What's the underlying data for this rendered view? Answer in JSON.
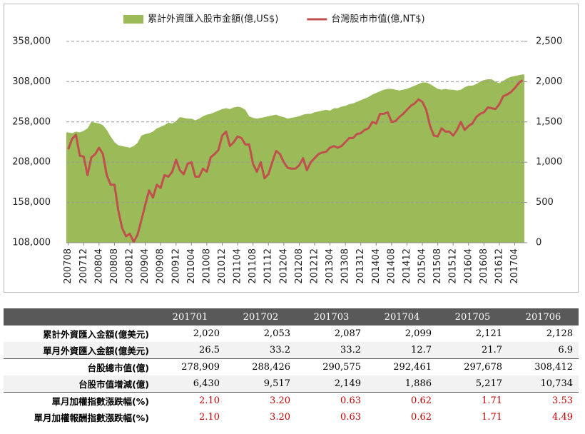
{
  "chart_data": {
    "type": "area-line",
    "categories": [
      "200708",
      null,
      null,
      null,
      "200712",
      null,
      null,
      null,
      "200804",
      null,
      null,
      null,
      "200808",
      null,
      null,
      null,
      "200812",
      null,
      null,
      null,
      "200904",
      null,
      null,
      null,
      "200908",
      null,
      null,
      null,
      "200912",
      null,
      null,
      null,
      "201004",
      null,
      null,
      null,
      "201008",
      null,
      null,
      null,
      "201012",
      null,
      null,
      null,
      "201104",
      null,
      null,
      null,
      "201108",
      null,
      null,
      null,
      "201112",
      null,
      null,
      null,
      "201204",
      null,
      null,
      null,
      "201208",
      null,
      null,
      null,
      "201212",
      null,
      null,
      null,
      "201304",
      null,
      null,
      null,
      "201308",
      null,
      null,
      null,
      "201312",
      null,
      null,
      null,
      "201404",
      null,
      null,
      null,
      "201408",
      null,
      null,
      null,
      "201412",
      null,
      null,
      null,
      "201504",
      null,
      null,
      null,
      "201508",
      null,
      null,
      null,
      "201512",
      null,
      null,
      null,
      "201604",
      null,
      null,
      null,
      "201608",
      null,
      null,
      null,
      "201612",
      null,
      null,
      null,
      "201704",
      null,
      null
    ],
    "series": [
      {
        "name": "累計外資匯入股市金額(億,US$)",
        "color": "#9bbb59",
        "kind": "area",
        "values": [
          245000,
          244000,
          246000,
          245000,
          247000,
          250000,
          258000,
          257000,
          256000,
          254000,
          248000,
          240000,
          233000,
          229000,
          228000,
          227000,
          226000,
          228000,
          232000,
          241000,
          243000,
          244000,
          246000,
          250000,
          252000,
          254000,
          257000,
          256000,
          259000,
          264000,
          263000,
          262000,
          262000,
          260000,
          262000,
          265000,
          267000,
          268000,
          270000,
          272000,
          274000,
          275000,
          274000,
          276000,
          277000,
          276000,
          273000,
          265000,
          263000,
          262000,
          263000,
          264000,
          265000,
          266000,
          267000,
          265000,
          264000,
          262000,
          263000,
          264000,
          265000,
          267000,
          268000,
          268000,
          270000,
          271000,
          272000,
          273000,
          272000,
          275000,
          275000,
          277000,
          278000,
          280000,
          281000,
          283000,
          285000,
          287000,
          289000,
          292000,
          294000,
          296000,
          298000,
          299000,
          299000,
          298000,
          297000,
          298000,
          299000,
          301000,
          303000,
          305000,
          307000,
          307000,
          305000,
          302000,
          299000,
          298000,
          299000,
          298000,
          298000,
          297000,
          298000,
          301000,
          303000,
          303000,
          305000,
          308000,
          310000,
          311000,
          311000,
          308000,
          306000,
          309000,
          312000,
          314000,
          315000,
          316000,
          317000
        ]
      },
      {
        "name": "台灣股市市值(億,NT$)",
        "color": "#c0504d",
        "kind": "line",
        "axis": "y2",
        "values": [
          1160,
          1290,
          1340,
          1080,
          1070,
          840,
          1060,
          1100,
          1180,
          1100,
          840,
          720,
          720,
          400,
          180,
          80,
          110,
          10,
          100,
          280,
          470,
          650,
          560,
          720,
          680,
          840,
          820,
          880,
          1030,
          900,
          850,
          980,
          1000,
          820,
          820,
          920,
          880,
          1060,
          1100,
          1150,
          1330,
          1380,
          1200,
          1250,
          1320,
          1300,
          1220,
          1220,
          980,
          880,
          1000,
          800,
          850,
          1000,
          1140,
          1100,
          1000,
          930,
          920,
          920,
          960,
          1050,
          900,
          1000,
          1050,
          1100,
          1120,
          1130,
          1180,
          1200,
          1180,
          1200,
          1250,
          1300,
          1300,
          1350,
          1360,
          1400,
          1420,
          1500,
          1480,
          1600,
          1600,
          1620,
          1500,
          1510,
          1560,
          1600,
          1650,
          1700,
          1730,
          1780,
          1750,
          1650,
          1450,
          1330,
          1320,
          1420,
          1380,
          1380,
          1330,
          1400,
          1500,
          1400,
          1450,
          1480,
          1560,
          1600,
          1620,
          1680,
          1670,
          1660,
          1720,
          1820,
          1840,
          1870,
          1920,
          1980,
          2020
        ]
      }
    ],
    "ylim": [
      108000,
      358000
    ],
    "yticks": [
      {
        "value": 108000,
        "label": "108,000"
      },
      {
        "value": 158000,
        "label": "158,000"
      },
      {
        "value": 208000,
        "label": "208,000"
      },
      {
        "value": 258000,
        "label": "258,000"
      },
      {
        "value": 308000,
        "label": "308,000"
      },
      {
        "value": 358000,
        "label": "358,000"
      }
    ],
    "y2lim": [
      0,
      2500
    ],
    "y2ticks": [
      0,
      500,
      {
        "value": 1000,
        "label": "1,000"
      },
      {
        "value": 1500,
        "label": "1,500"
      },
      {
        "value": 2000,
        "label": "2,000"
      },
      {
        "value": 2500,
        "label": "2,500"
      }
    ],
    "grid": true,
    "legend": "top"
  },
  "table": {
    "header": [
      "201701",
      "201702",
      "201703",
      "201704",
      "201705",
      "201706"
    ],
    "rows": [
      [
        "累計外資匯入金額(億美元)",
        "2,020",
        "2,053",
        "2,087",
        "2,099",
        "2,121",
        "2,128"
      ],
      [
        "單月外資匯入金額(億美元)",
        "26.5",
        "33.2",
        "33.2",
        "12.7",
        "21.7",
        "6.9"
      ],
      [
        "台股總市值(億)",
        "278,909",
        "288,426",
        "290,575",
        "292,461",
        "297,678",
        "308,412"
      ],
      [
        "台股市值增減(億)",
        "6,430",
        "9,517",
        "2,149",
        "1,886",
        "5,217",
        "10,734"
      ],
      [
        "單月加權指數漲跌幅(%)",
        "2.10",
        "3.20",
        "0.63",
        "0.62",
        "1.71",
        "3.53"
      ],
      [
        "單月加權報酬指數漲跌幅(%)",
        "2.10",
        "3.20",
        "0.63",
        "0.62",
        "1.71",
        "4.49"
      ]
    ]
  }
}
